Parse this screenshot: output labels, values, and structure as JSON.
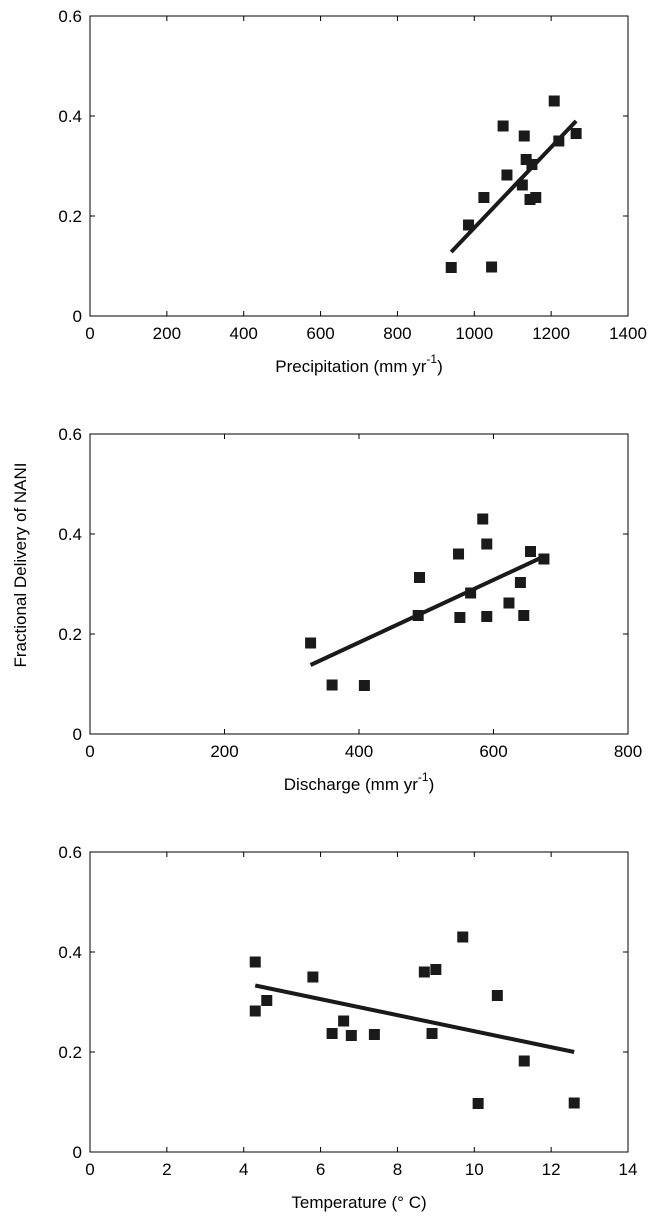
{
  "shared_ylabel": "Fractional Delivery of NANI",
  "chart_data": [
    {
      "type": "scatter",
      "xlabel_main": "Precipitation (mm yr",
      "xlabel_sup": "-1",
      "xlabel_tail": ")",
      "xlim": [
        0,
        1400
      ],
      "ylim": [
        0,
        0.6
      ],
      "xticks": [
        0,
        200,
        400,
        600,
        800,
        1000,
        1200,
        1400
      ],
      "yticks": [
        0,
        0.2,
        0.4,
        0.6
      ],
      "xtick_labels": [
        "0",
        "200",
        "400",
        "600",
        "800",
        "1000",
        "1200",
        "1400"
      ],
      "ytick_labels": [
        "0",
        "0.2",
        "0.4",
        "0.6"
      ],
      "grid": false,
      "points": [
        {
          "x": 940,
          "y": 0.097
        },
        {
          "x": 985,
          "y": 0.182
        },
        {
          "x": 1025,
          "y": 0.237
        },
        {
          "x": 1045,
          "y": 0.098
        },
        {
          "x": 1075,
          "y": 0.38
        },
        {
          "x": 1085,
          "y": 0.282
        },
        {
          "x": 1125,
          "y": 0.262
        },
        {
          "x": 1130,
          "y": 0.36
        },
        {
          "x": 1135,
          "y": 0.313
        },
        {
          "x": 1145,
          "y": 0.233
        },
        {
          "x": 1150,
          "y": 0.303
        },
        {
          "x": 1160,
          "y": 0.237
        },
        {
          "x": 1208,
          "y": 0.43
        },
        {
          "x": 1220,
          "y": 0.35
        },
        {
          "x": 1265,
          "y": 0.365
        }
      ],
      "fit_line": {
        "x": [
          940,
          1265
        ],
        "y": [
          0.128,
          0.39
        ]
      }
    },
    {
      "type": "scatter",
      "xlabel_main": "Discharge (mm yr",
      "xlabel_sup": "-1",
      "xlabel_tail": ")",
      "xlim": [
        0,
        800
      ],
      "ylim": [
        0,
        0.6
      ],
      "xticks": [
        0,
        200,
        400,
        600,
        800
      ],
      "yticks": [
        0,
        0.2,
        0.4,
        0.6
      ],
      "xtick_labels": [
        "0",
        "200",
        "400",
        "600",
        "800"
      ],
      "ytick_labels": [
        "0",
        "0.2",
        "0.4",
        "0.6"
      ],
      "grid": false,
      "points": [
        {
          "x": 328,
          "y": 0.182
        },
        {
          "x": 360,
          "y": 0.098
        },
        {
          "x": 408,
          "y": 0.097
        },
        {
          "x": 488,
          "y": 0.237
        },
        {
          "x": 490,
          "y": 0.313
        },
        {
          "x": 548,
          "y": 0.36
        },
        {
          "x": 550,
          "y": 0.233
        },
        {
          "x": 566,
          "y": 0.282
        },
        {
          "x": 584,
          "y": 0.43
        },
        {
          "x": 590,
          "y": 0.38
        },
        {
          "x": 590,
          "y": 0.235
        },
        {
          "x": 623,
          "y": 0.262
        },
        {
          "x": 640,
          "y": 0.303
        },
        {
          "x": 645,
          "y": 0.237
        },
        {
          "x": 655,
          "y": 0.365
        },
        {
          "x": 675,
          "y": 0.35
        }
      ],
      "fit_line": {
        "x": [
          328,
          678
        ],
        "y": [
          0.138,
          0.357
        ]
      }
    },
    {
      "type": "scatter",
      "xlabel_main": "Temperature (° C)",
      "xlabel_sup": "",
      "xlabel_tail": "",
      "xlim": [
        0,
        14
      ],
      "ylim": [
        0,
        0.6
      ],
      "xticks": [
        0,
        2,
        4,
        6,
        8,
        10,
        12,
        14
      ],
      "yticks": [
        0,
        0.2,
        0.4,
        0.6
      ],
      "xtick_labels": [
        "0",
        "2",
        "4",
        "6",
        "8",
        "10",
        "12",
        "14"
      ],
      "ytick_labels": [
        "0",
        "0.2",
        "0.4",
        "0.6"
      ],
      "grid": false,
      "points": [
        {
          "x": 4.3,
          "y": 0.38
        },
        {
          "x": 4.3,
          "y": 0.282
        },
        {
          "x": 4.6,
          "y": 0.303
        },
        {
          "x": 5.8,
          "y": 0.35
        },
        {
          "x": 6.3,
          "y": 0.237
        },
        {
          "x": 6.6,
          "y": 0.262
        },
        {
          "x": 6.8,
          "y": 0.233
        },
        {
          "x": 7.4,
          "y": 0.235
        },
        {
          "x": 8.7,
          "y": 0.36
        },
        {
          "x": 8.9,
          "y": 0.237
        },
        {
          "x": 9.0,
          "y": 0.365
        },
        {
          "x": 9.7,
          "y": 0.43
        },
        {
          "x": 10.1,
          "y": 0.097
        },
        {
          "x": 10.6,
          "y": 0.313
        },
        {
          "x": 11.3,
          "y": 0.182
        },
        {
          "x": 12.6,
          "y": 0.098
        }
      ],
      "fit_line": {
        "x": [
          4.3,
          12.6
        ],
        "y": [
          0.333,
          0.2
        ]
      }
    }
  ]
}
